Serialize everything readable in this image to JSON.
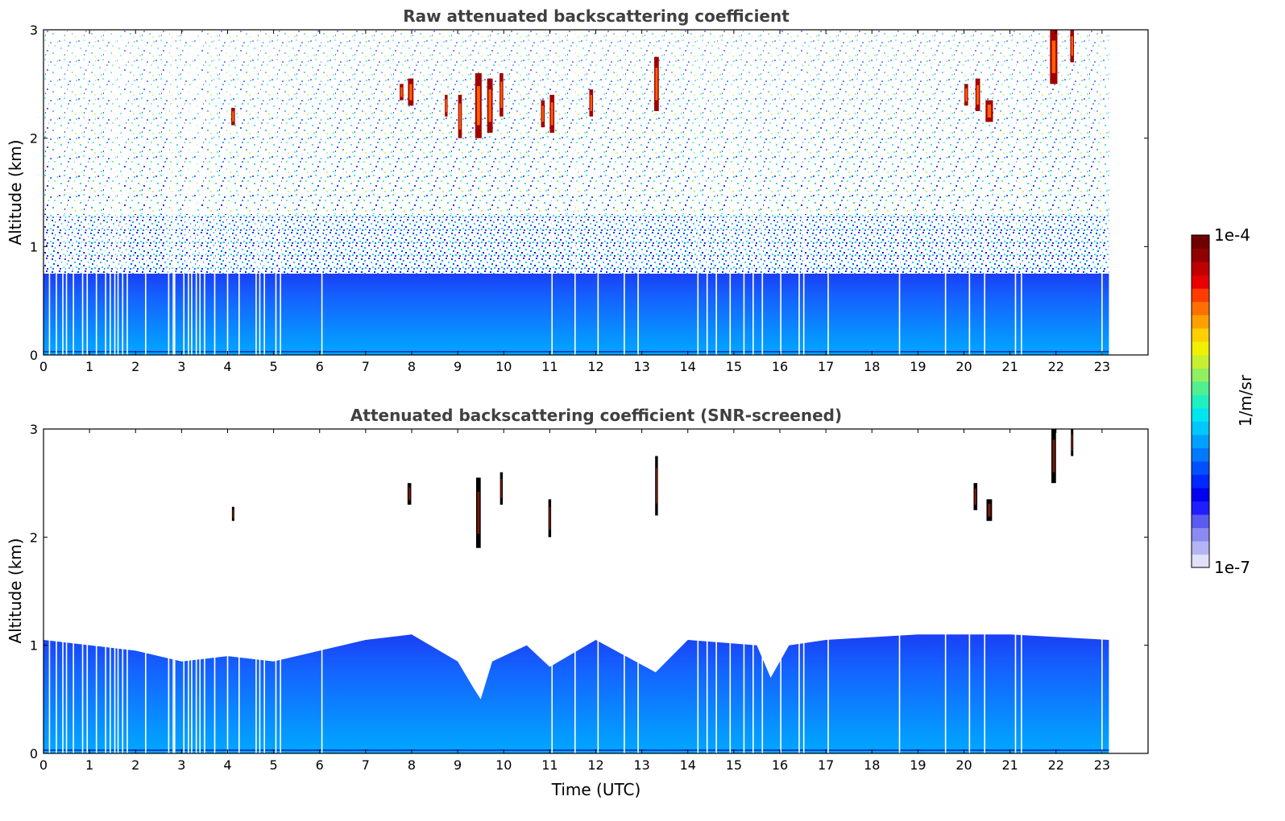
{
  "colormap": [
    "#e0e0f8",
    "#b4b4f4",
    "#8a8af0",
    "#5a5af0",
    "#1e1eff",
    "#0000f0",
    "#0028ff",
    "#0050ff",
    "#0078ff",
    "#00a0ff",
    "#00c8ff",
    "#00e6f0",
    "#20f0c0",
    "#50f090",
    "#90f060",
    "#c8f030",
    "#f0f000",
    "#ffd000",
    "#ffa000",
    "#ff7000",
    "#ff3c00",
    "#e80000",
    "#c00000",
    "#900000",
    "#700000"
  ],
  "chart_data": [
    {
      "type": "heatmap",
      "title": "Raw attenuated backscattering coefficient",
      "xlabel": "",
      "ylabel": "Altitude (km)",
      "xlim": [
        0,
        24
      ],
      "ylim": [
        0,
        3
      ],
      "x_ticks": [
        "0",
        "1",
        "2",
        "3",
        "4",
        "5",
        "6",
        "7",
        "8",
        "9",
        "10",
        "11",
        "12",
        "13",
        "14",
        "15",
        "16",
        "17",
        "18",
        "19",
        "20",
        "21",
        "22",
        "23"
      ],
      "y_ticks": [
        "0",
        "1",
        "2",
        "3"
      ],
      "data_time_range": [
        0,
        23.15
      ],
      "dropout_times": [
        0.13,
        0.28,
        0.42,
        0.5,
        0.65,
        0.85,
        0.95,
        1.15,
        1.35,
        1.45,
        1.55,
        1.62,
        1.72,
        1.82,
        2.22,
        2.72,
        2.82,
        2.85,
        3.05,
        3.15,
        3.22,
        3.32,
        3.4,
        3.5,
        3.72,
        4.0,
        4.25,
        4.62,
        4.7,
        4.8,
        5.05,
        5.15,
        6.05,
        11.05,
        11.55,
        12.05,
        12.62,
        12.92,
        14.22,
        14.42,
        14.62,
        14.92,
        15.22,
        15.42,
        15.62,
        16.02,
        16.42,
        16.52,
        17.05,
        18.6,
        19.6,
        20.12,
        20.45,
        21.12,
        21.25,
        23.0
      ],
      "cloud_features": [
        {
          "t": 4.12,
          "z0": 2.12,
          "z1": 2.28,
          "w": 0.08
        },
        {
          "t": 7.78,
          "z0": 2.35,
          "z1": 2.5,
          "w": 0.08
        },
        {
          "t": 7.98,
          "z0": 2.3,
          "z1": 2.55,
          "w": 0.12
        },
        {
          "t": 8.75,
          "z0": 2.2,
          "z1": 2.4,
          "w": 0.06
        },
        {
          "t": 9.05,
          "z0": 2.0,
          "z1": 2.4,
          "w": 0.08
        },
        {
          "t": 9.45,
          "z0": 2.0,
          "z1": 2.6,
          "w": 0.14
        },
        {
          "t": 9.7,
          "z0": 2.05,
          "z1": 2.55,
          "w": 0.12
        },
        {
          "t": 9.95,
          "z0": 2.2,
          "z1": 2.6,
          "w": 0.08
        },
        {
          "t": 10.85,
          "z0": 2.1,
          "z1": 2.35,
          "w": 0.08
        },
        {
          "t": 11.05,
          "z0": 2.05,
          "z1": 2.4,
          "w": 0.1
        },
        {
          "t": 11.9,
          "z0": 2.2,
          "z1": 2.45,
          "w": 0.08
        },
        {
          "t": 13.32,
          "z0": 2.25,
          "z1": 2.75,
          "w": 0.1
        },
        {
          "t": 20.05,
          "z0": 2.3,
          "z1": 2.5,
          "w": 0.08
        },
        {
          "t": 20.3,
          "z0": 2.25,
          "z1": 2.55,
          "w": 0.1
        },
        {
          "t": 20.55,
          "z0": 2.15,
          "z1": 2.35,
          "w": 0.16
        },
        {
          "t": 21.95,
          "z0": 2.5,
          "z1": 3.0,
          "w": 0.16
        },
        {
          "t": 22.35,
          "z0": 2.7,
          "z1": 3.0,
          "w": 0.08
        }
      ]
    },
    {
      "type": "heatmap",
      "title": "Attenuated backscattering coefficient (SNR-screened)",
      "xlabel": "Time (UTC)",
      "ylabel": "Altitude (km)",
      "xlim": [
        0,
        24
      ],
      "ylim": [
        0,
        3
      ],
      "x_ticks": [
        "0",
        "1",
        "2",
        "3",
        "4",
        "5",
        "6",
        "7",
        "8",
        "9",
        "10",
        "11",
        "12",
        "13",
        "14",
        "15",
        "16",
        "17",
        "18",
        "19",
        "20",
        "21",
        "22",
        "23"
      ],
      "y_ticks": [
        "0",
        "1",
        "2",
        "3"
      ],
      "data_time_range": [
        0,
        23.15
      ],
      "boundary_layer_top": [
        [
          0,
          1.05
        ],
        [
          2,
          0.95
        ],
        [
          3,
          0.85
        ],
        [
          4,
          0.9
        ],
        [
          5,
          0.85
        ],
        [
          6,
          0.95
        ],
        [
          7,
          1.05
        ],
        [
          8,
          1.1
        ],
        [
          9,
          0.85
        ],
        [
          9.35,
          0.6
        ],
        [
          9.5,
          0.5
        ],
        [
          9.75,
          0.85
        ],
        [
          10.5,
          1.0
        ],
        [
          11,
          0.8
        ],
        [
          12,
          1.05
        ],
        [
          13.3,
          0.75
        ],
        [
          14,
          1.05
        ],
        [
          15.5,
          1.0
        ],
        [
          15.8,
          0.7
        ],
        [
          16.2,
          1.0
        ],
        [
          17,
          1.05
        ],
        [
          19,
          1.1
        ],
        [
          21,
          1.1
        ],
        [
          23.15,
          1.05
        ]
      ],
      "cloud_features": [
        {
          "t": 4.12,
          "z0": 2.15,
          "z1": 2.28,
          "w": 0.05
        },
        {
          "t": 7.95,
          "z0": 2.3,
          "z1": 2.5,
          "w": 0.08
        },
        {
          "t": 9.45,
          "z0": 1.9,
          "z1": 2.55,
          "w": 0.1
        },
        {
          "t": 9.95,
          "z0": 2.3,
          "z1": 2.6,
          "w": 0.06
        },
        {
          "t": 11.0,
          "z0": 2.0,
          "z1": 2.35,
          "w": 0.06
        },
        {
          "t": 13.32,
          "z0": 2.2,
          "z1": 2.75,
          "w": 0.06
        },
        {
          "t": 20.25,
          "z0": 2.25,
          "z1": 2.5,
          "w": 0.08
        },
        {
          "t": 20.55,
          "z0": 2.15,
          "z1": 2.35,
          "w": 0.12
        },
        {
          "t": 21.95,
          "z0": 2.5,
          "z1": 3.0,
          "w": 0.1
        },
        {
          "t": 22.35,
          "z0": 2.75,
          "z1": 3.0,
          "w": 0.05
        }
      ]
    }
  ],
  "colorbar": {
    "label": "1/m/sr",
    "max_label": "1e-4",
    "min_label": "1e-7"
  }
}
